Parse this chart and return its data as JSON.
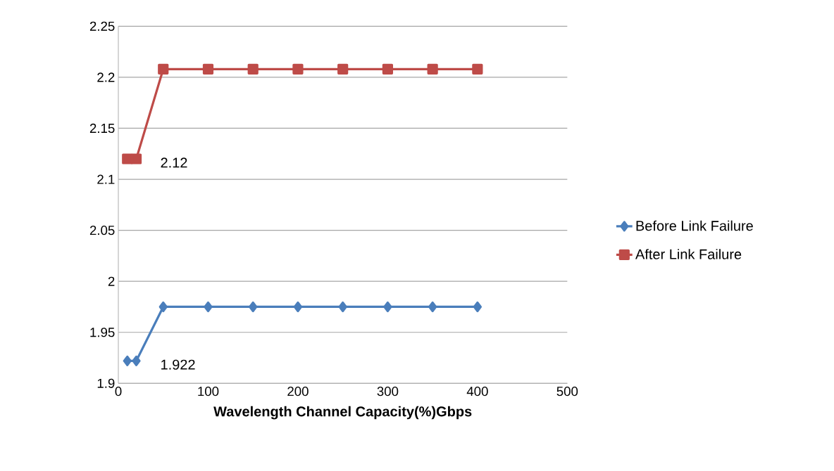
{
  "chart_data": {
    "type": "line",
    "xlabel": "Wavelength Channel Capacity(%)Gbps",
    "x": [
      10,
      20,
      50,
      100,
      150,
      200,
      250,
      300,
      350,
      400
    ],
    "series": [
      {
        "name": "Before Link Failure",
        "color": "#4a7ebb",
        "marker": "diamond",
        "values": [
          1.922,
          1.922,
          1.975,
          1.975,
          1.975,
          1.975,
          1.975,
          1.975,
          1.975,
          1.975
        ]
      },
      {
        "name": "After Link Failure",
        "color": "#be4b48",
        "marker": "square",
        "values": [
          2.12,
          2.12,
          2.208,
          2.208,
          2.208,
          2.208,
          2.208,
          2.208,
          2.208,
          2.208
        ]
      }
    ],
    "xlim": [
      0,
      500
    ],
    "xticks": [
      0,
      100,
      200,
      300,
      400,
      500
    ],
    "ylim": [
      1.9,
      2.25
    ],
    "yticks": [
      1.9,
      1.95,
      2,
      2.05,
      2.1,
      2.15,
      2.2,
      2.25
    ],
    "annotations": [
      {
        "text": "2.12",
        "x": 20,
        "y": 2.12
      },
      {
        "text": "1.922",
        "x": 20,
        "y": 1.922
      }
    ],
    "grid": "y",
    "legend": "right"
  }
}
